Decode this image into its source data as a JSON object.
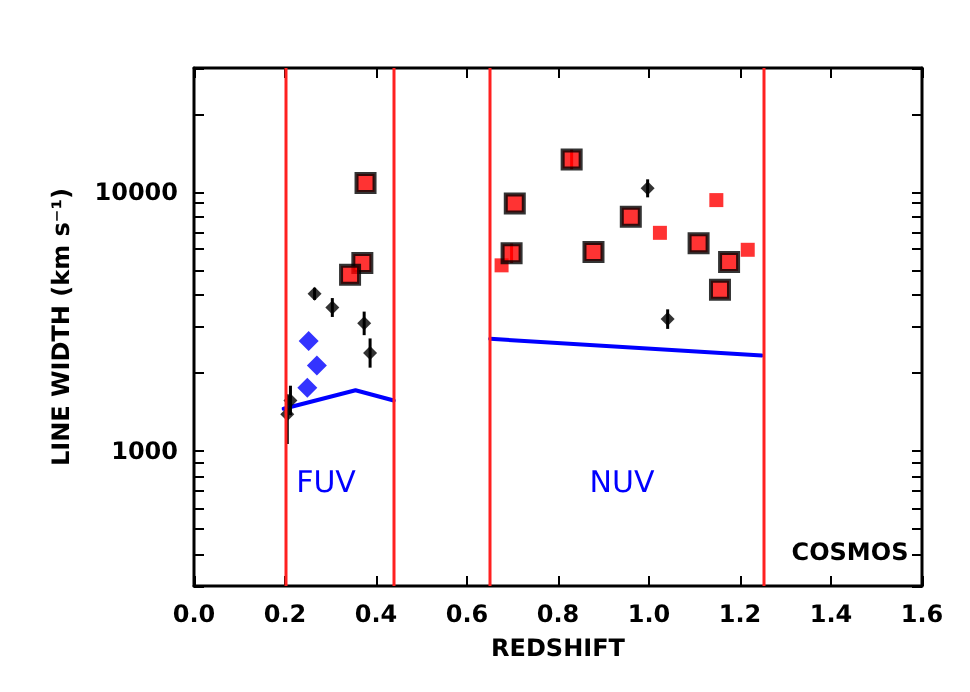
{
  "chart_data": {
    "type": "scatter",
    "xlabel": "REDSHIFT",
    "ylabel": "LINE WIDTH (km s⁻¹)",
    "xlim": [
      0,
      1.6
    ],
    "xticks": [
      {
        "value": 0,
        "label": "0.0"
      },
      0.2,
      0.4,
      0.6,
      0.8,
      {
        "value": 1,
        "label": "1.0"
      },
      1.2,
      1.4,
      1.6
    ],
    "ylim": [
      300,
      30000
    ],
    "log": true,
    "yticks": [
      {
        "value": 300,
        "label": null
      },
      {
        "value": 400,
        "label": null
      },
      {
        "value": 500,
        "label": null
      },
      {
        "value": 600,
        "label": null
      },
      {
        "value": 700,
        "label": null
      },
      {
        "value": 800,
        "label": null
      },
      {
        "value": 900,
        "label": null
      },
      1000,
      {
        "value": 2000,
        "label": null
      },
      {
        "value": 3000,
        "label": null
      },
      {
        "value": 4000,
        "label": null
      },
      {
        "value": 5000,
        "label": null
      },
      {
        "value": 6000,
        "label": null
      },
      {
        "value": 7000,
        "label": null
      },
      {
        "value": 8000,
        "label": null
      },
      {
        "value": 9000,
        "label": null
      },
      10000,
      {
        "value": 20000,
        "label": null
      },
      {
        "value": 30000,
        "label": null
      }
    ],
    "grid": false,
    "series": [
      {
        "marker": "square",
        "color": "#ff0000",
        "x": [
          0.377,
          0.37,
          0.343,
          0.83,
          0.705,
          0.698,
          0.878,
          0.96,
          1.109,
          1.176,
          1.156
        ],
        "values": [
          10800,
          5300,
          4770,
          13300,
          9000,
          5780,
          5850,
          8000,
          6310,
          5350,
          4180
        ],
        "errors": [
          null,
          null,
          null,
          [
            12200,
            14500
          ],
          null,
          [
            5300,
            6300
          ],
          null,
          null,
          null,
          null,
          null
        ]
      },
      {
        "marker": "square",
        "color": "#ff0000",
        "x": [
          0.676,
          1.024,
          1.148,
          1.217
        ],
        "values": [
          5190,
          6930,
          9270,
          5960
        ]
      },
      {
        "marker": "diamond",
        "color": "#000000",
        "x": [
          0.265,
          0.304,
          0.374,
          0.387,
          0.212,
          0.205,
          0.997,
          1.041
        ],
        "values": [
          4030,
          3570,
          3100,
          2380,
          1560,
          1380,
          10300,
          3220
        ],
        "errors": [
          [
            3820,
            4250
          ],
          [
            3280,
            3880
          ],
          [
            2790,
            3440
          ],
          [
            2090,
            2710
          ],
          [
            1370,
            1780
          ],
          [
            1060,
            1650
          ],
          [
            9500,
            11150
          ],
          [
            2950,
            3510
          ]
        ]
      },
      {
        "marker": "diamond",
        "color": "#0000ff",
        "x": [
          0.252,
          0.27,
          0.249
        ],
        "values": [
          2650,
          2130,
          1750
        ]
      },
      {
        "type": "line",
        "marker": "none",
        "color": "#0000ff",
        "x": [
          0.197,
          0.355,
          0.439
        ],
        "values": [
          1450,
          1710,
          1560
        ]
      },
      {
        "type": "line",
        "marker": "none",
        "color": "#0000ff",
        "x": [
          0.651,
          1.248
        ],
        "values": [
          2700,
          2330
        ]
      }
    ],
    "ref_lines": [
      {
        "axis": "x",
        "value": 0.2,
        "color": "#ff2020"
      },
      {
        "axis": "x",
        "value": 0.44,
        "color": "#ff2020"
      },
      {
        "axis": "x",
        "value": 0.65,
        "color": "#ff2020"
      },
      {
        "axis": "x",
        "value": 1.25,
        "color": "#ff2020"
      }
    ],
    "annotations": [
      "FUV",
      "NUV",
      "COSMOS"
    ]
  }
}
